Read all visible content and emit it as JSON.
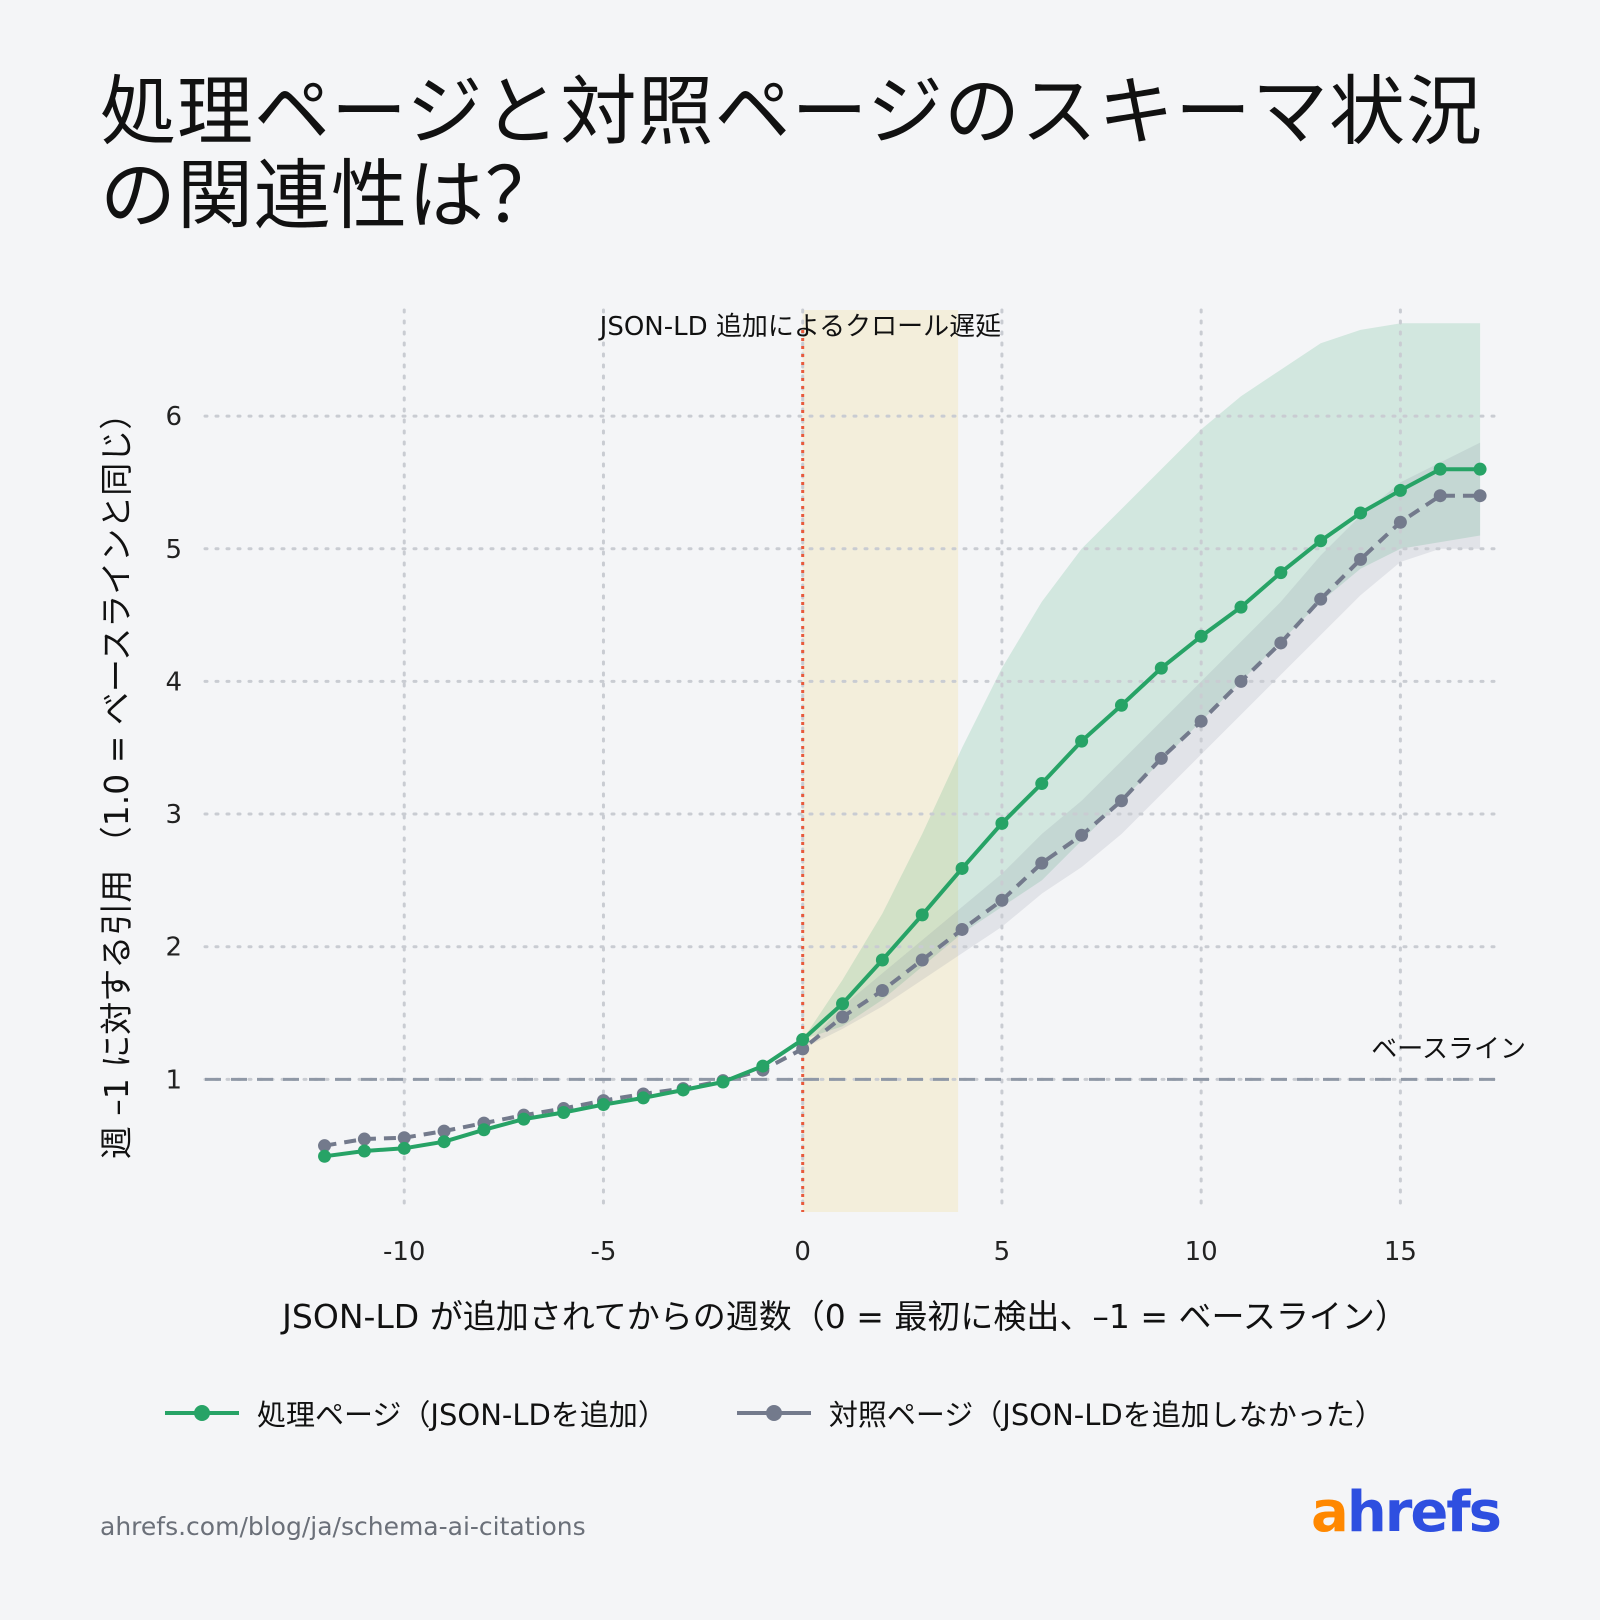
{
  "title": "処理ページと対照ページのスキーマ状況の関連性は？",
  "chart_data": {
    "type": "line",
    "title": "処理ページと対照ページのスキーマ状況の関連性は？",
    "xlabel": "JSON-LD が追加されてからの週数（0 = 最初に検出、–1 = ベースライン）",
    "ylabel": "週 –1 に対する引用 （1.0 = ベースラインと同じ）",
    "xlim": [
      -15,
      17.5
    ],
    "ylim": [
      0,
      6.8
    ],
    "xticks": [
      -10,
      -5,
      0,
      5,
      10,
      15
    ],
    "xtick_labels": [
      "-10",
      "-5",
      "0",
      "5",
      "10",
      "15"
    ],
    "yticks": [
      1,
      2,
      3,
      4,
      5,
      6
    ],
    "ytick_labels": [
      "1",
      "2",
      "3",
      "4",
      "5",
      "6"
    ],
    "grid": true,
    "legend_position": "bottom",
    "baseline": {
      "y": 1.0,
      "label": "ベースライン"
    },
    "event_line": {
      "x": 0,
      "color": "#e85a3c"
    },
    "shaded_region": {
      "x_start": 0,
      "x_end": 3.9,
      "label": "JSON-LD 追加によるクロール遅延",
      "color": "#f3eedb"
    },
    "series": [
      {
        "name": "処理ページ（JSON-LDを追加）",
        "color": "#27a366",
        "style": "solid",
        "x": [
          -12,
          -11,
          -10,
          -9,
          -8,
          -7,
          -6,
          -5,
          -4,
          -3,
          -2,
          -1,
          0,
          1,
          2,
          3,
          4,
          5,
          6,
          7,
          8,
          9,
          10,
          11,
          12,
          13,
          14,
          15,
          16,
          17
        ],
        "y": [
          0.42,
          0.46,
          0.48,
          0.53,
          0.62,
          0.7,
          0.75,
          0.81,
          0.86,
          0.92,
          0.98,
          1.1,
          1.3,
          1.57,
          1.9,
          2.24,
          2.59,
          2.93,
          3.23,
          3.55,
          3.82,
          4.1,
          4.34,
          4.56,
          4.82,
          5.06,
          5.27,
          5.44,
          5.6,
          5.6
        ],
        "ci_lower": [
          null,
          null,
          null,
          null,
          null,
          null,
          null,
          null,
          null,
          null,
          null,
          null,
          1.3,
          1.4,
          1.6,
          1.85,
          2.1,
          2.3,
          2.5,
          2.8,
          3.1,
          3.4,
          3.7,
          4.0,
          4.3,
          4.6,
          4.85,
          5.0,
          5.05,
          5.1
        ],
        "ci_upper": [
          null,
          null,
          null,
          null,
          null,
          null,
          null,
          null,
          null,
          null,
          null,
          null,
          1.3,
          1.75,
          2.25,
          2.85,
          3.5,
          4.1,
          4.6,
          5.0,
          5.3,
          5.6,
          5.9,
          6.15,
          6.35,
          6.55,
          6.65,
          6.7,
          6.7,
          6.7
        ]
      },
      {
        "name": "対照ページ（JSON-LDを追加しなかった）",
        "color": "#737a8c",
        "style": "dashed",
        "x": [
          -12,
          -11,
          -10,
          -9,
          -8,
          -7,
          -6,
          -5,
          -4,
          -3,
          -2,
          -1,
          0,
          1,
          2,
          3,
          4,
          5,
          6,
          7,
          8,
          9,
          10,
          11,
          12,
          13,
          14,
          15,
          16,
          17
        ],
        "y": [
          0.5,
          0.55,
          0.56,
          0.61,
          0.67,
          0.73,
          0.78,
          0.84,
          0.89,
          0.93,
          0.99,
          1.07,
          1.23,
          1.47,
          1.67,
          1.9,
          2.13,
          2.35,
          2.63,
          2.84,
          3.1,
          3.42,
          3.7,
          4.0,
          4.29,
          4.62,
          4.92,
          5.2,
          5.4,
          5.4
        ],
        "ci_lower": [
          null,
          null,
          null,
          null,
          null,
          null,
          null,
          null,
          null,
          null,
          null,
          null,
          1.23,
          1.38,
          1.55,
          1.75,
          1.95,
          2.15,
          2.4,
          2.6,
          2.85,
          3.15,
          3.45,
          3.75,
          4.05,
          4.35,
          4.65,
          4.9,
          5.0,
          5.0
        ],
        "ci_upper": [
          null,
          null,
          null,
          null,
          null,
          null,
          null,
          null,
          null,
          null,
          null,
          null,
          1.23,
          1.55,
          1.8,
          2.05,
          2.3,
          2.55,
          2.85,
          3.1,
          3.4,
          3.7,
          4.0,
          4.3,
          4.6,
          4.95,
          5.25,
          5.5,
          5.65,
          5.8
        ]
      }
    ]
  },
  "legend": {
    "treatment": "処理ページ（JSON-LDを追加）",
    "control": "対照ページ（JSON-LDを追加しなかった）"
  },
  "footer": {
    "url": "ahrefs.com/blog/ja/schema-ai-citations",
    "logo_a": "a",
    "logo_rest": "hrefs"
  },
  "colors": {
    "treatment": "#27a366",
    "control": "#737a8c",
    "event_line": "#e85a3c",
    "crawl_lag": "#f3eedb",
    "baseline": "#8f98a6",
    "logo_orange": "#ff8800",
    "logo_blue": "#2e4fe0"
  }
}
